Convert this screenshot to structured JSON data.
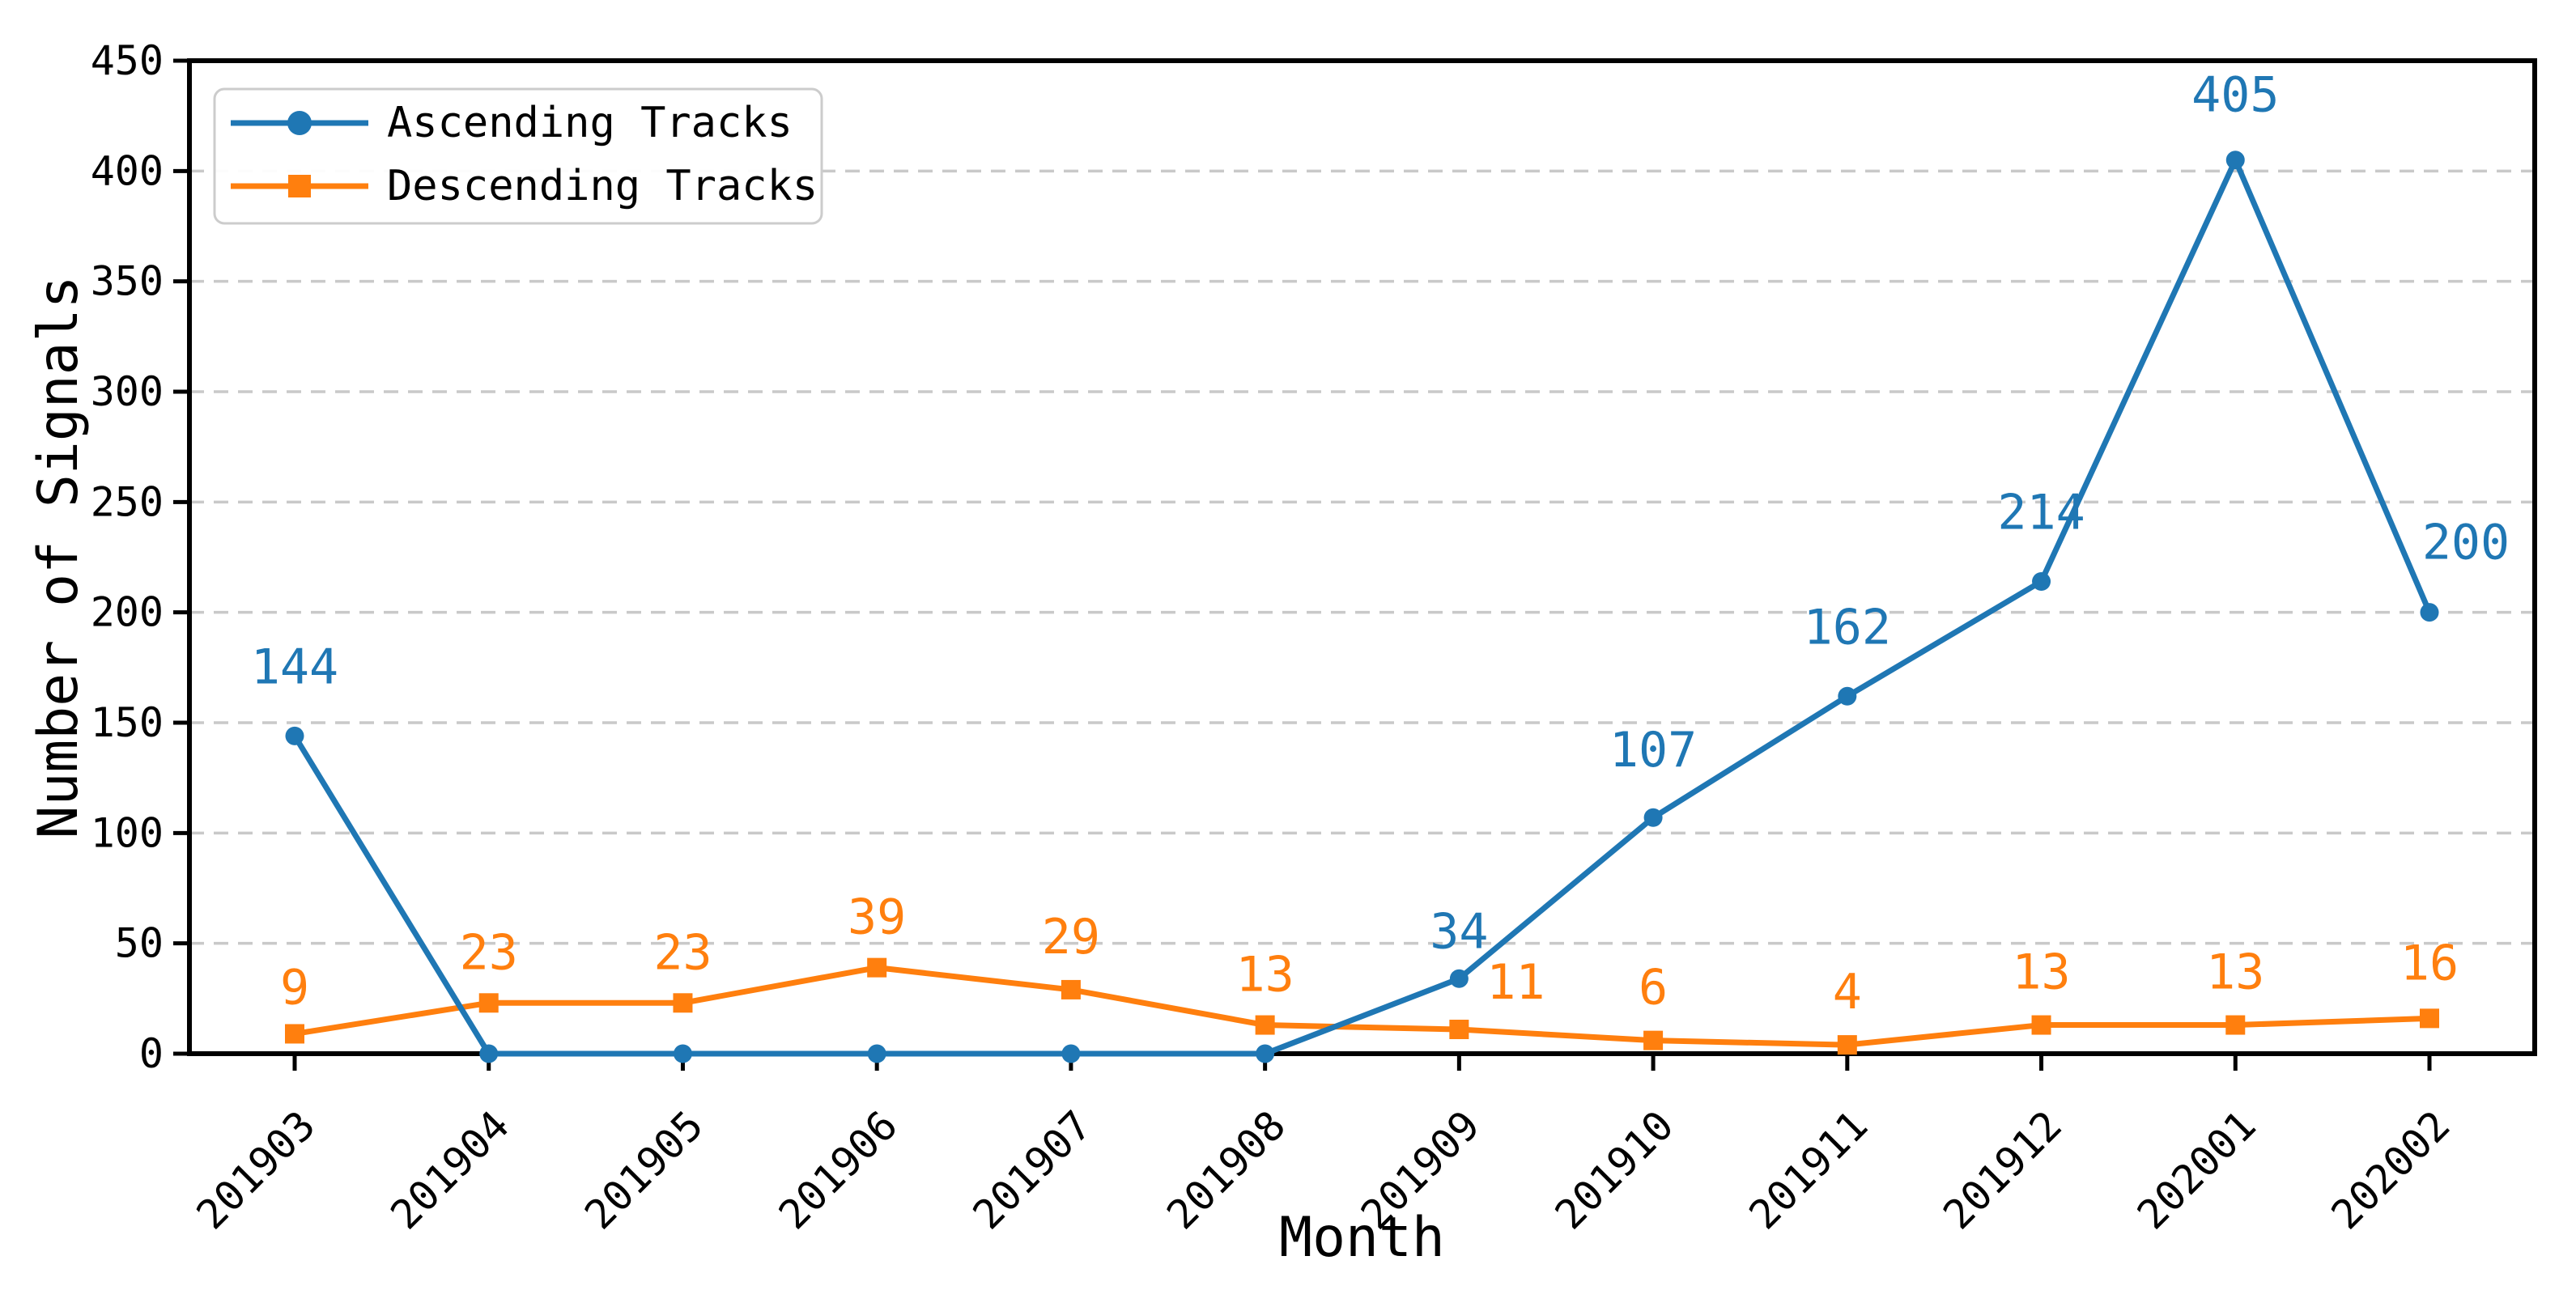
{
  "chart_data": {
    "type": "line",
    "title": "",
    "xlabel": "Month",
    "ylabel": "Number of Signals",
    "categories": [
      "201903",
      "201904",
      "201905",
      "201906",
      "201907",
      "201908",
      "201909",
      "201910",
      "201911",
      "201912",
      "202001",
      "202002"
    ],
    "series": [
      {
        "name": "Ascending Tracks",
        "color": "#1f77b4",
        "marker": "circle",
        "values": [
          144,
          0,
          0,
          0,
          0,
          0,
          34,
          107,
          162,
          214,
          405,
          200
        ],
        "point_labels": [
          "144",
          "",
          "",
          "",
          "",
          "",
          "34",
          "107",
          "162",
          "214",
          "405",
          "200"
        ],
        "label_offsets": [
          [
            0,
            -85
          ],
          [
            0,
            0
          ],
          [
            0,
            0
          ],
          [
            0,
            0
          ],
          [
            0,
            0
          ],
          [
            0,
            0
          ],
          [
            0,
            -58
          ],
          [
            0,
            -83
          ],
          [
            0,
            -85
          ],
          [
            0,
            -85
          ],
          [
            0,
            -80
          ],
          [
            45,
            -86
          ]
        ]
      },
      {
        "name": "Descending Tracks",
        "color": "#ff7f0e",
        "marker": "square",
        "values": [
          9,
          23,
          23,
          39,
          29,
          13,
          11,
          6,
          4,
          13,
          13,
          16
        ],
        "point_labels": [
          "9",
          "23",
          "23",
          "39",
          "29",
          "13",
          "11",
          "6",
          "4",
          "13",
          "13",
          "16"
        ],
        "label_offsets": [
          [
            0,
            -57
          ],
          [
            0,
            -62
          ],
          [
            0,
            -62
          ],
          [
            0,
            -62
          ],
          [
            0,
            -65
          ],
          [
            0,
            -62
          ],
          [
            70,
            -58
          ],
          [
            0,
            -65
          ],
          [
            0,
            -65
          ],
          [
            0,
            -65
          ],
          [
            0,
            -65
          ],
          [
            0,
            -68
          ]
        ]
      }
    ],
    "ylim": [
      0,
      450
    ],
    "ytick_step": 50,
    "yticks": [
      0,
      50,
      100,
      150,
      200,
      250,
      300,
      350,
      400,
      450
    ],
    "grid": "horizontal dashed",
    "legend_position": "upper left",
    "colors": {
      "grid": "#c9c9c9",
      "axis": "#000000",
      "tick_text": "#000000",
      "legend_border": "#cccccc",
      "legend_background": "#ffffff"
    }
  }
}
